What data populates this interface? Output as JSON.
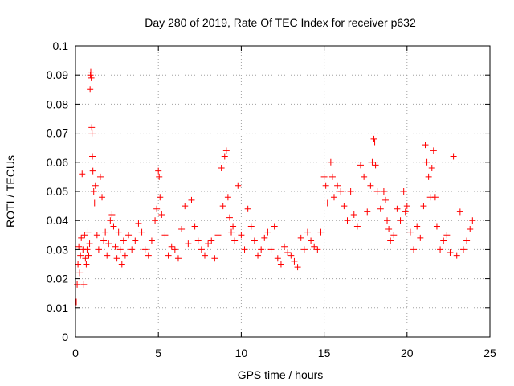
{
  "chart_data": {
    "type": "scatter",
    "title": "Day 280 of 2019, Rate Of TEC Index for receiver p632",
    "xlabel": "GPS time / hours",
    "ylabel": "ROTI / TECUs",
    "xlim": [
      0,
      25
    ],
    "ylim": [
      0,
      0.1
    ],
    "x_ticks": [
      0,
      5,
      10,
      15,
      20,
      25
    ],
    "x_tick_labels": [
      "0",
      "5",
      "10",
      "15",
      "20",
      "25"
    ],
    "y_ticks": [
      0,
      0.01,
      0.02,
      0.03,
      0.04,
      0.05,
      0.06,
      0.07,
      0.08,
      0.09,
      0.1
    ],
    "y_tick_labels": [
      "0",
      "0.01",
      "0.02",
      "0.03",
      "0.04",
      "0.05",
      "0.06",
      "0.07",
      "0.08",
      "0.09",
      "0.1"
    ],
    "grid": true,
    "marker": "+",
    "color": "#ff0000",
    "series": [
      {
        "points": [
          [
            0.05,
            0.012
          ],
          [
            0.1,
            0.018
          ],
          [
            0.15,
            0.025
          ],
          [
            0.2,
            0.031
          ],
          [
            0.25,
            0.022
          ],
          [
            0.3,
            0.028
          ],
          [
            0.35,
            0.034
          ],
          [
            0.4,
            0.056
          ],
          [
            0.45,
            0.03
          ],
          [
            0.5,
            0.018
          ],
          [
            0.55,
            0.035
          ],
          [
            0.6,
            0.027
          ],
          [
            0.65,
            0.025
          ],
          [
            0.7,
            0.03
          ],
          [
            0.75,
            0.036
          ],
          [
            0.8,
            0.028
          ],
          [
            0.85,
            0.032
          ],
          [
            0.88,
            0.085
          ],
          [
            0.9,
            0.09
          ],
          [
            0.92,
            0.091
          ],
          [
            0.95,
            0.089
          ],
          [
            0.98,
            0.072
          ],
          [
            1.0,
            0.07
          ],
          [
            1.02,
            0.062
          ],
          [
            1.05,
            0.057
          ],
          [
            1.1,
            0.05
          ],
          [
            1.15,
            0.046
          ],
          [
            1.2,
            0.052
          ],
          [
            1.3,
            0.035
          ],
          [
            1.4,
            0.03
          ],
          [
            1.5,
            0.055
          ],
          [
            1.6,
            0.048
          ],
          [
            1.7,
            0.033
          ],
          [
            1.8,
            0.036
          ],
          [
            1.9,
            0.028
          ],
          [
            2.0,
            0.032
          ],
          [
            2.1,
            0.04
          ],
          [
            2.2,
            0.042
          ],
          [
            2.3,
            0.038
          ],
          [
            2.4,
            0.031
          ],
          [
            2.5,
            0.027
          ],
          [
            2.6,
            0.036
          ],
          [
            2.7,
            0.03
          ],
          [
            2.8,
            0.025
          ],
          [
            2.9,
            0.033
          ],
          [
            3.0,
            0.028
          ],
          [
            3.2,
            0.035
          ],
          [
            3.4,
            0.03
          ],
          [
            3.6,
            0.033
          ],
          [
            3.8,
            0.039
          ],
          [
            4.0,
            0.036
          ],
          [
            4.2,
            0.03
          ],
          [
            4.4,
            0.028
          ],
          [
            4.6,
            0.033
          ],
          [
            4.8,
            0.04
          ],
          [
            4.9,
            0.044
          ],
          [
            5.0,
            0.057
          ],
          [
            5.05,
            0.055
          ],
          [
            5.1,
            0.048
          ],
          [
            5.2,
            0.042
          ],
          [
            5.4,
            0.035
          ],
          [
            5.6,
            0.028
          ],
          [
            5.8,
            0.031
          ],
          [
            6.0,
            0.03
          ],
          [
            6.2,
            0.027
          ],
          [
            6.4,
            0.037
          ],
          [
            6.6,
            0.045
          ],
          [
            6.8,
            0.032
          ],
          [
            7.0,
            0.047
          ],
          [
            7.2,
            0.038
          ],
          [
            7.4,
            0.033
          ],
          [
            7.6,
            0.03
          ],
          [
            7.8,
            0.028
          ],
          [
            8.0,
            0.032
          ],
          [
            8.2,
            0.033
          ],
          [
            8.4,
            0.027
          ],
          [
            8.6,
            0.035
          ],
          [
            8.8,
            0.058
          ],
          [
            8.9,
            0.045
          ],
          [
            9.0,
            0.062
          ],
          [
            9.1,
            0.064
          ],
          [
            9.2,
            0.048
          ],
          [
            9.3,
            0.041
          ],
          [
            9.4,
            0.036
          ],
          [
            9.5,
            0.038
          ],
          [
            9.6,
            0.033
          ],
          [
            9.8,
            0.052
          ],
          [
            10.0,
            0.035
          ],
          [
            10.2,
            0.03
          ],
          [
            10.4,
            0.044
          ],
          [
            10.6,
            0.038
          ],
          [
            10.8,
            0.033
          ],
          [
            11.0,
            0.028
          ],
          [
            11.2,
            0.03
          ],
          [
            11.4,
            0.034
          ],
          [
            11.6,
            0.036
          ],
          [
            11.8,
            0.03
          ],
          [
            12.0,
            0.038
          ],
          [
            12.2,
            0.027
          ],
          [
            12.4,
            0.025
          ],
          [
            12.6,
            0.031
          ],
          [
            12.8,
            0.029
          ],
          [
            13.0,
            0.028
          ],
          [
            13.2,
            0.026
          ],
          [
            13.4,
            0.024
          ],
          [
            13.6,
            0.034
          ],
          [
            13.8,
            0.03
          ],
          [
            14.0,
            0.036
          ],
          [
            14.2,
            0.033
          ],
          [
            14.4,
            0.031
          ],
          [
            14.6,
            0.03
          ],
          [
            14.8,
            0.036
          ],
          [
            15.0,
            0.055
          ],
          [
            15.1,
            0.052
          ],
          [
            15.2,
            0.046
          ],
          [
            15.4,
            0.06
          ],
          [
            15.5,
            0.055
          ],
          [
            15.6,
            0.048
          ],
          [
            15.8,
            0.052
          ],
          [
            16.0,
            0.05
          ],
          [
            16.2,
            0.045
          ],
          [
            16.4,
            0.04
          ],
          [
            16.6,
            0.05
          ],
          [
            16.8,
            0.042
          ],
          [
            17.0,
            0.038
          ],
          [
            17.2,
            0.059
          ],
          [
            17.4,
            0.055
          ],
          [
            17.6,
            0.043
          ],
          [
            17.8,
            0.052
          ],
          [
            17.9,
            0.06
          ],
          [
            18.0,
            0.068
          ],
          [
            18.05,
            0.067
          ],
          [
            18.1,
            0.059
          ],
          [
            18.2,
            0.05
          ],
          [
            18.4,
            0.044
          ],
          [
            18.6,
            0.05
          ],
          [
            18.7,
            0.047
          ],
          [
            18.8,
            0.04
          ],
          [
            18.9,
            0.037
          ],
          [
            19.0,
            0.033
          ],
          [
            19.2,
            0.035
          ],
          [
            19.4,
            0.044
          ],
          [
            19.6,
            0.04
          ],
          [
            19.8,
            0.05
          ],
          [
            19.9,
            0.043
          ],
          [
            20.0,
            0.045
          ],
          [
            20.2,
            0.036
          ],
          [
            20.4,
            0.03
          ],
          [
            20.6,
            0.038
          ],
          [
            20.8,
            0.034
          ],
          [
            21.0,
            0.045
          ],
          [
            21.1,
            0.066
          ],
          [
            21.2,
            0.06
          ],
          [
            21.3,
            0.055
          ],
          [
            21.4,
            0.048
          ],
          [
            21.5,
            0.058
          ],
          [
            21.6,
            0.064
          ],
          [
            21.7,
            0.048
          ],
          [
            21.8,
            0.038
          ],
          [
            22.0,
            0.03
          ],
          [
            22.2,
            0.033
          ],
          [
            22.4,
            0.035
          ],
          [
            22.6,
            0.029
          ],
          [
            22.8,
            0.062
          ],
          [
            23.0,
            0.028
          ],
          [
            23.2,
            0.043
          ],
          [
            23.4,
            0.03
          ],
          [
            23.6,
            0.033
          ],
          [
            23.8,
            0.037
          ],
          [
            23.95,
            0.04
          ]
        ]
      }
    ]
  }
}
